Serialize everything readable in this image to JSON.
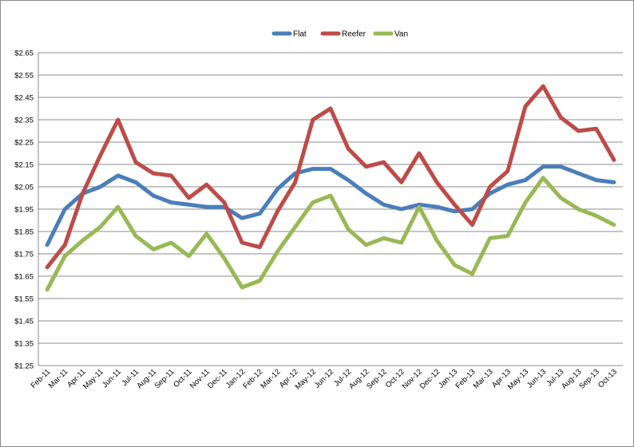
{
  "chart_data": {
    "type": "line",
    "categories": [
      "Feb-11",
      "Mar-11",
      "Apr-11",
      "May-11",
      "Jun-11",
      "Jul-11",
      "Aug-11",
      "Sep-11",
      "Oct-11",
      "Nov-11",
      "Dec-11",
      "Jan-12",
      "Feb-12",
      "Mar-12",
      "Apr-12",
      "May-12",
      "Jun-12",
      "Jul-12",
      "Aug-12",
      "Sep-12",
      "Oct-12",
      "Nov-12",
      "Dec-12",
      "Jan-13",
      "Feb-13",
      "Mar-13",
      "Apr-13",
      "May-13",
      "Jun-13",
      "Jul-13",
      "Aug-13",
      "Sep-13",
      "Oct-13"
    ],
    "series": [
      {
        "name": "Flat",
        "color": "#4a7ebb",
        "values": [
          1.79,
          1.95,
          2.02,
          2.05,
          2.1,
          2.07,
          2.01,
          1.98,
          1.97,
          1.96,
          1.96,
          1.91,
          1.93,
          2.04,
          2.11,
          2.13,
          2.13,
          2.08,
          2.02,
          1.97,
          1.95,
          1.97,
          1.96,
          1.94,
          1.95,
          2.02,
          2.06,
          2.08,
          2.14,
          2.14,
          2.11,
          2.08,
          2.07
        ]
      },
      {
        "name": "Reefer",
        "color": "#be4b48",
        "values": [
          1.69,
          1.79,
          2.02,
          2.19,
          2.35,
          2.16,
          2.11,
          2.1,
          2.0,
          2.06,
          1.98,
          1.8,
          1.78,
          1.94,
          2.07,
          2.35,
          2.4,
          2.22,
          2.14,
          2.16,
          2.07,
          2.2,
          2.07,
          1.97,
          1.88,
          2.05,
          2.12,
          2.41,
          2.5,
          2.36,
          2.3,
          2.31,
          2.17
        ]
      },
      {
        "name": "Van",
        "color": "#98b954",
        "values": [
          1.59,
          1.74,
          1.81,
          1.87,
          1.96,
          1.83,
          1.77,
          1.8,
          1.74,
          1.84,
          1.73,
          1.6,
          1.63,
          1.76,
          1.87,
          1.98,
          2.01,
          1.86,
          1.79,
          1.82,
          1.8,
          1.96,
          1.81,
          1.7,
          1.66,
          1.82,
          1.83,
          1.98,
          2.09,
          2.0,
          1.95,
          1.92,
          1.88
        ]
      }
    ],
    "yticks": [
      "$2.65",
      "$2.55",
      "$2.45",
      "$2.35",
      "$2.25",
      "$2.15",
      "$2.05",
      "$1.95",
      "$1.85",
      "$1.75",
      "$1.65",
      "$1.55",
      "$1.45",
      "$1.35",
      "$1.25"
    ],
    "ylim": [
      1.25,
      2.65
    ],
    "grid": true,
    "legend_position": "top-center",
    "title": "",
    "xlabel": "",
    "ylabel": ""
  }
}
